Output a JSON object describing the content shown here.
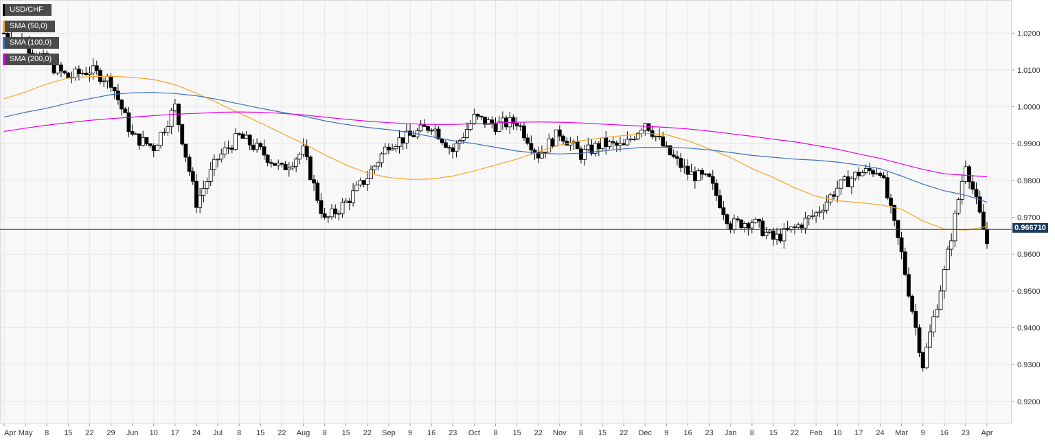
{
  "symbol": "USD/CHF",
  "last_price_label": "0.966710",
  "colors": {
    "background": "#ffffff",
    "plot_bg": "#f8f8f9",
    "grid": "#e6e6e9",
    "up_candle": "#ffffff",
    "down_candle": "#000000",
    "sma50": "#f5a623",
    "sma100": "#3a6fbf",
    "sma200": "#e600e6",
    "price_line": "#1f3a5f"
  },
  "legend": [
    {
      "label": "USD/CHF",
      "color": "#000000"
    },
    {
      "label": "SMA (50,0)",
      "color": "#f5a623"
    },
    {
      "label": "SMA (100,0)",
      "color": "#3a6fbf"
    },
    {
      "label": "SMA (200,0)",
      "color": "#e600e6"
    }
  ],
  "chart_data": {
    "type": "line",
    "title": "",
    "xlabel": "",
    "ylabel": "",
    "ylim": [
      0.914,
      1.029
    ],
    "grid": true,
    "legend_position": "top-left",
    "y_ticks": [
      "1.0200",
      "1.0100",
      "1.0000",
      "0.9900",
      "0.9800",
      "0.9700",
      "0.9600",
      "0.9500",
      "0.9400",
      "0.9300",
      "0.9200"
    ],
    "x_ticks": [
      "Apr",
      "May",
      "8",
      "15",
      "22",
      "29",
      "Jun",
      "10",
      "17",
      "24",
      "Jul",
      "8",
      "15",
      "22",
      "Aug",
      "8",
      "15",
      "22",
      "Sep",
      "9",
      "16",
      "23",
      "Oct",
      "8",
      "15",
      "22",
      "Nov",
      "8",
      "15",
      "22",
      "Dec",
      "9",
      "16",
      "23",
      "Jan",
      "8",
      "15",
      "22",
      "Feb",
      "10",
      "17",
      "24",
      "Mar",
      "9",
      "16",
      "23",
      "Apr"
    ],
    "last_price": 0.96671,
    "series": [
      {
        "name": "SMA (50,0)",
        "x": [
          "Apr",
          "May",
          "8",
          "15",
          "22",
          "29",
          "Jun",
          "10",
          "17",
          "24",
          "Jul",
          "8",
          "15",
          "22",
          "Aug",
          "8",
          "15",
          "22",
          "Sep",
          "9",
          "16",
          "23",
          "Oct",
          "8",
          "15",
          "22",
          "Nov",
          "8",
          "15",
          "22",
          "Dec",
          "9",
          "16",
          "23",
          "Jan",
          "8",
          "15",
          "22",
          "Feb",
          "10",
          "17",
          "24",
          "Mar",
          "9",
          "16",
          "23",
          "Apr"
        ],
        "values": [
          1.0022,
          1.004,
          1.0062,
          1.0078,
          1.0082,
          1.0083,
          1.008,
          1.0074,
          1.006,
          1.0037,
          1.001,
          0.9983,
          0.9956,
          0.9928,
          0.99,
          0.987,
          0.9842,
          0.982,
          0.9808,
          0.9803,
          0.9804,
          0.9812,
          0.9826,
          0.9842,
          0.9858,
          0.9878,
          0.9896,
          0.9908,
          0.9916,
          0.9922,
          0.9928,
          0.9924,
          0.9908,
          0.9886,
          0.9862,
          0.9832,
          0.9808,
          0.978,
          0.9757,
          0.9745,
          0.974,
          0.9734,
          0.9722,
          0.969,
          0.9668,
          0.9665,
          0.9675
        ]
      },
      {
        "name": "SMA (100,0)",
        "x": [
          "Apr",
          "May",
          "8",
          "15",
          "22",
          "29",
          "Jun",
          "10",
          "17",
          "24",
          "Jul",
          "8",
          "15",
          "22",
          "Aug",
          "8",
          "15",
          "22",
          "Sep",
          "9",
          "16",
          "23",
          "Oct",
          "8",
          "15",
          "22",
          "Nov",
          "8",
          "15",
          "22",
          "Dec",
          "9",
          "16",
          "23",
          "Jan",
          "8",
          "15",
          "22",
          "Feb",
          "10",
          "17",
          "24",
          "Mar",
          "9",
          "16",
          "23",
          "Apr"
        ],
        "values": [
          0.9972,
          0.9985,
          0.9996,
          1.001,
          1.0022,
          1.0033,
          1.0038,
          1.0039,
          1.0036,
          1.003,
          1.002,
          1.0008,
          0.9996,
          0.9985,
          0.9975,
          0.9962,
          0.9952,
          0.9944,
          0.9938,
          0.993,
          0.9919,
          0.9908,
          0.99,
          0.989,
          0.988,
          0.9874,
          0.9872,
          0.9874,
          0.988,
          0.9886,
          0.989,
          0.989,
          0.9888,
          0.9883,
          0.9876,
          0.9868,
          0.9863,
          0.9858,
          0.9855,
          0.985,
          0.9842,
          0.9832,
          0.9812,
          0.979,
          0.9772,
          0.976,
          0.9741
        ]
      },
      {
        "name": "SMA (200,0)",
        "x": [
          "Apr",
          "May",
          "8",
          "15",
          "22",
          "29",
          "Jun",
          "10",
          "17",
          "24",
          "Jul",
          "8",
          "15",
          "22",
          "Aug",
          "8",
          "15",
          "22",
          "Sep",
          "9",
          "16",
          "23",
          "Oct",
          "8",
          "15",
          "22",
          "Nov",
          "8",
          "15",
          "22",
          "Dec",
          "9",
          "16",
          "23",
          "Jan",
          "8",
          "15",
          "22",
          "Feb",
          "10",
          "17",
          "24",
          "Mar",
          "9",
          "16",
          "23",
          "Apr"
        ],
        "values": [
          0.9933,
          0.9942,
          0.995,
          0.9957,
          0.9963,
          0.9968,
          0.9972,
          0.9976,
          0.998,
          0.9982,
          0.9985,
          0.9986,
          0.9985,
          0.9982,
          0.9978,
          0.9972,
          0.9966,
          0.9961,
          0.9957,
          0.9954,
          0.9952,
          0.9952,
          0.9954,
          0.9956,
          0.9958,
          0.9959,
          0.9958,
          0.9956,
          0.9953,
          0.995,
          0.9947,
          0.9944,
          0.994,
          0.9934,
          0.9927,
          0.992,
          0.9912,
          0.9905,
          0.9895,
          0.9885,
          0.9872,
          0.986,
          0.9845,
          0.983,
          0.9818,
          0.9814,
          0.981
        ]
      },
      {
        "name": "USD/CHF",
        "x": [
          "Apr",
          "May",
          "8",
          "15",
          "22",
          "29",
          "Jun",
          "10",
          "17",
          "24",
          "Jul",
          "8",
          "15",
          "22",
          "Aug",
          "8",
          "15",
          "22",
          "Sep",
          "9",
          "16",
          "23",
          "Oct",
          "8",
          "15",
          "22",
          "Nov",
          "8",
          "15",
          "22",
          "Dec",
          "9",
          "16",
          "23",
          "Jan",
          "8",
          "15",
          "22",
          "Feb",
          "10",
          "17",
          "24",
          "Mar",
          "9",
          "16",
          "23",
          "Apr"
        ],
        "values": [
          1.02,
          1.017,
          1.012,
          1.008,
          1.01,
          1.007,
          0.992,
          0.989,
          1.0,
          0.974,
          0.986,
          0.992,
          0.988,
          0.983,
          0.988,
          0.969,
          0.974,
          0.981,
          0.99,
          0.992,
          0.995,
          0.988,
          0.997,
          0.995,
          0.996,
          0.987,
          0.993,
          0.987,
          0.99,
          0.989,
          0.996,
          0.988,
          0.982,
          0.98,
          0.968,
          0.969,
          0.964,
          0.967,
          0.971,
          0.978,
          0.982,
          0.983,
          0.96,
          0.93,
          0.955,
          0.985,
          0.963
        ]
      }
    ]
  }
}
